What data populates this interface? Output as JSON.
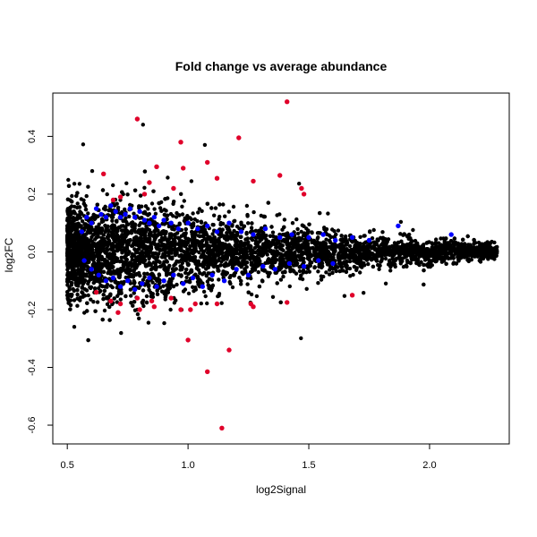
{
  "chart_data": {
    "type": "scatter",
    "title": "Fold change vs average abundance",
    "xlabel": "log2Signal",
    "ylabel": "log2FC",
    "xlim": [
      0.44,
      2.33
    ],
    "ylim": [
      -0.665,
      0.55
    ],
    "xticks": [
      "0.5",
      "1.0",
      "1.5",
      "2.0"
    ],
    "yticks": [
      "-0.6",
      "-0.4",
      "-0.2",
      "0.0",
      "0.2",
      "0.4"
    ],
    "grid": false,
    "legend": "none",
    "colors": {
      "background_points": "#000000",
      "highlight_blue": "#0000ff",
      "highlight_red": "#e0002a"
    },
    "density": {
      "x_range": [
        0.5,
        2.28
      ],
      "band_halfwidth": [
        {
          "x": 0.5,
          "y": 0.17
        },
        {
          "x": 0.8,
          "y": 0.2
        },
        {
          "x": 1.0,
          "y": 0.15
        },
        {
          "x": 1.3,
          "y": 0.11
        },
        {
          "x": 1.6,
          "y": 0.075
        },
        {
          "x": 1.9,
          "y": 0.05
        },
        {
          "x": 2.28,
          "y": 0.03
        }
      ]
    },
    "series": [
      {
        "color": "red",
        "points": [
          {
            "x": 0.79,
            "y": 0.46
          },
          {
            "x": 1.41,
            "y": 0.52
          },
          {
            "x": 0.97,
            "y": 0.38
          },
          {
            "x": 1.21,
            "y": 0.395
          },
          {
            "x": 1.08,
            "y": 0.31
          },
          {
            "x": 0.98,
            "y": 0.29
          },
          {
            "x": 0.87,
            "y": 0.295
          },
          {
            "x": 1.12,
            "y": 0.255
          },
          {
            "x": 1.38,
            "y": 0.265
          },
          {
            "x": 1.27,
            "y": 0.245
          },
          {
            "x": 1.47,
            "y": 0.22
          },
          {
            "x": 1.48,
            "y": 0.2
          },
          {
            "x": 0.94,
            "y": 0.22
          },
          {
            "x": 0.84,
            "y": 0.24
          },
          {
            "x": 0.65,
            "y": 0.27
          },
          {
            "x": 0.69,
            "y": 0.18
          },
          {
            "x": 0.72,
            "y": 0.19
          },
          {
            "x": 0.82,
            "y": 0.2
          },
          {
            "x": 0.62,
            "y": -0.14
          },
          {
            "x": 0.68,
            "y": -0.17
          },
          {
            "x": 0.72,
            "y": -0.18
          },
          {
            "x": 0.79,
            "y": -0.16
          },
          {
            "x": 0.85,
            "y": -0.17
          },
          {
            "x": 0.86,
            "y": -0.19
          },
          {
            "x": 0.93,
            "y": -0.16
          },
          {
            "x": 0.97,
            "y": -0.2
          },
          {
            "x": 1.01,
            "y": -0.2
          },
          {
            "x": 1.03,
            "y": -0.18
          },
          {
            "x": 1.12,
            "y": -0.18
          },
          {
            "x": 1.26,
            "y": -0.18
          },
          {
            "x": 1.27,
            "y": -0.19
          },
          {
            "x": 1.41,
            "y": -0.175
          },
          {
            "x": 1.68,
            "y": -0.15
          },
          {
            "x": 1.0,
            "y": -0.305
          },
          {
            "x": 1.17,
            "y": -0.34
          },
          {
            "x": 1.08,
            "y": -0.415
          },
          {
            "x": 1.14,
            "y": -0.61
          },
          {
            "x": 0.71,
            "y": -0.21
          },
          {
            "x": 0.8,
            "y": -0.2
          }
        ]
      },
      {
        "color": "blue",
        "points": [
          {
            "x": 0.56,
            "y": 0.07
          },
          {
            "x": 0.58,
            "y": 0.12
          },
          {
            "x": 0.6,
            "y": 0.1
          },
          {
            "x": 0.62,
            "y": 0.15
          },
          {
            "x": 0.64,
            "y": 0.13
          },
          {
            "x": 0.66,
            "y": 0.12
          },
          {
            "x": 0.68,
            "y": 0.16
          },
          {
            "x": 0.7,
            "y": 0.14
          },
          {
            "x": 0.72,
            "y": 0.12
          },
          {
            "x": 0.74,
            "y": 0.13
          },
          {
            "x": 0.76,
            "y": 0.15
          },
          {
            "x": 0.78,
            "y": 0.12
          },
          {
            "x": 0.8,
            "y": 0.14
          },
          {
            "x": 0.82,
            "y": 0.11
          },
          {
            "x": 0.84,
            "y": 0.1
          },
          {
            "x": 0.86,
            "y": 0.12
          },
          {
            "x": 0.88,
            "y": 0.09
          },
          {
            "x": 0.9,
            "y": 0.11
          },
          {
            "x": 0.93,
            "y": 0.1
          },
          {
            "x": 0.96,
            "y": 0.08
          },
          {
            "x": 1.0,
            "y": 0.1
          },
          {
            "x": 1.04,
            "y": 0.08
          },
          {
            "x": 1.08,
            "y": 0.09
          },
          {
            "x": 1.12,
            "y": 0.07
          },
          {
            "x": 1.17,
            "y": 0.1
          },
          {
            "x": 1.22,
            "y": 0.07
          },
          {
            "x": 1.27,
            "y": 0.06
          },
          {
            "x": 1.32,
            "y": 0.08
          },
          {
            "x": 1.38,
            "y": 0.05
          },
          {
            "x": 1.43,
            "y": 0.06
          },
          {
            "x": 1.5,
            "y": 0.05
          },
          {
            "x": 1.56,
            "y": 0.06
          },
          {
            "x": 1.61,
            "y": 0.04
          },
          {
            "x": 1.68,
            "y": 0.05
          },
          {
            "x": 1.75,
            "y": 0.04
          },
          {
            "x": 1.87,
            "y": 0.09
          },
          {
            "x": 2.09,
            "y": 0.06
          },
          {
            "x": 0.57,
            "y": -0.03
          },
          {
            "x": 0.6,
            "y": -0.06
          },
          {
            "x": 0.63,
            "y": -0.08
          },
          {
            "x": 0.66,
            "y": -0.1
          },
          {
            "x": 0.69,
            "y": -0.09
          },
          {
            "x": 0.72,
            "y": -0.12
          },
          {
            "x": 0.75,
            "y": -0.1
          },
          {
            "x": 0.78,
            "y": -0.13
          },
          {
            "x": 0.81,
            "y": -0.11
          },
          {
            "x": 0.84,
            "y": -0.09
          },
          {
            "x": 0.87,
            "y": -0.12
          },
          {
            "x": 0.9,
            "y": -0.1
          },
          {
            "x": 0.94,
            "y": -0.08
          },
          {
            "x": 0.98,
            "y": -0.11
          },
          {
            "x": 1.02,
            "y": -0.09
          },
          {
            "x": 1.06,
            "y": -0.12
          },
          {
            "x": 1.1,
            "y": -0.08
          },
          {
            "x": 1.15,
            "y": -0.1
          },
          {
            "x": 1.2,
            "y": -0.06
          },
          {
            "x": 1.25,
            "y": -0.08
          },
          {
            "x": 1.31,
            "y": -0.05
          },
          {
            "x": 1.36,
            "y": -0.06
          },
          {
            "x": 1.42,
            "y": -0.04
          },
          {
            "x": 1.48,
            "y": -0.05
          },
          {
            "x": 1.54,
            "y": -0.03
          },
          {
            "x": 1.6,
            "y": -0.04
          }
        ]
      }
    ]
  }
}
